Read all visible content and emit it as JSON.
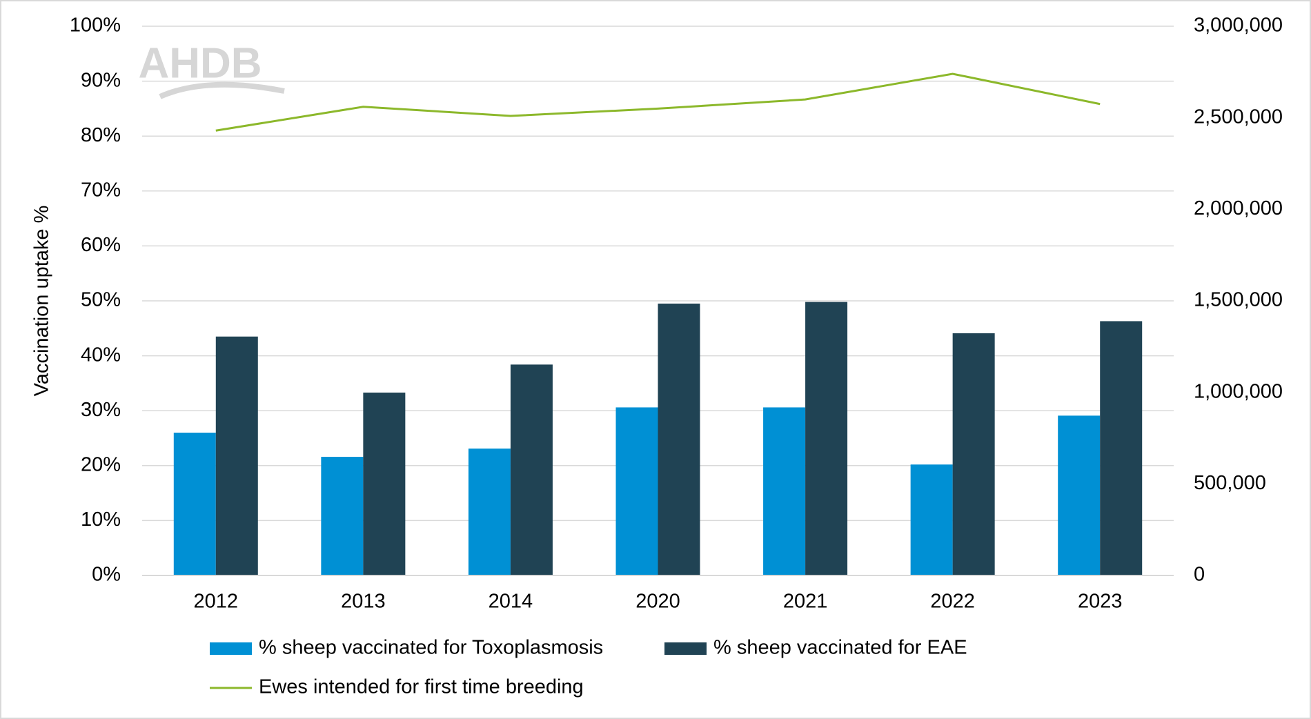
{
  "chart_data": {
    "type": "bar_line",
    "watermark": "AHDB",
    "y_axis_label": "Vaccination uptake %",
    "categories": [
      "2012",
      "2013",
      "2014",
      "2020",
      "2021",
      "2022",
      "2023"
    ],
    "series": [
      {
        "name": "% sheep vaccinated for Toxoplasmosis",
        "type": "bar",
        "color": "#0090d4",
        "values": [
          26.0,
          21.6,
          23.1,
          30.6,
          30.6,
          20.2,
          29.1
        ]
      },
      {
        "name": "% sheep vaccinated for EAE",
        "type": "bar",
        "color": "#204354",
        "values": [
          43.5,
          33.3,
          38.4,
          49.5,
          49.8,
          44.1,
          46.3
        ]
      },
      {
        "name": "Ewes intended for first time breeding",
        "type": "line",
        "axis": "y2",
        "color": "#8cb82b",
        "values": [
          2430000,
          2560000,
          2510000,
          2550000,
          2600000,
          2740000,
          2575000
        ]
      }
    ],
    "ylim": [
      0,
      100
    ],
    "yticks": [
      {
        "value": 0,
        "label": "0%"
      },
      {
        "value": 10,
        "label": "10%"
      },
      {
        "value": 20,
        "label": "20%"
      },
      {
        "value": 30,
        "label": "30%"
      },
      {
        "value": 40,
        "label": "40%"
      },
      {
        "value": 50,
        "label": "50%"
      },
      {
        "value": 60,
        "label": "60%"
      },
      {
        "value": 70,
        "label": "70%"
      },
      {
        "value": 80,
        "label": "80%"
      },
      {
        "value": 90,
        "label": "90%"
      },
      {
        "value": 100,
        "label": "100%"
      }
    ],
    "y2lim": [
      0,
      3000000
    ],
    "y2ticks": [
      0,
      {
        "value": 500000,
        "label": "500,000"
      },
      {
        "value": 1000000,
        "label": "1,000,000"
      },
      {
        "value": 1500000,
        "label": "1,500,000"
      },
      {
        "value": 2000000,
        "label": "2,000,000"
      },
      {
        "value": 2500000,
        "label": "2,500,000"
      },
      {
        "value": 3000000,
        "label": "3,000,000"
      }
    ],
    "grid": true
  }
}
